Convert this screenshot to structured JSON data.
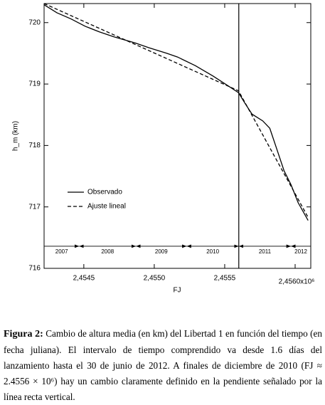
{
  "chart_data": {
    "type": "line",
    "ylabel": "h_m (km)",
    "xlabel": "FJ",
    "xlim": [
      2454218,
      2456111
    ],
    "ylim": [
      716,
      720.31
    ],
    "yticks": [
      716,
      717,
      718,
      719,
      720
    ],
    "xticks": [
      {
        "value": 2454500,
        "label": "2,4545"
      },
      {
        "value": 2455000,
        "label": "2,4550"
      },
      {
        "value": 2455500,
        "label": "2,4555"
      },
      {
        "value": 2456000,
        "label": "2,4560x10⁶"
      }
    ],
    "legend": "left",
    "vline_x": 2455600,
    "period_bar_y": 716.36,
    "periods": [
      {
        "label": "2007",
        "start": 2454218,
        "end": 2454467
      },
      {
        "label": "2008",
        "start": 2454467,
        "end": 2454870
      },
      {
        "label": "2009",
        "start": 2454870,
        "end": 2455230
      },
      {
        "label": "2010",
        "start": 2455230,
        "end": 2455600
      },
      {
        "label": "2011",
        "start": 2455600,
        "end": 2455970
      },
      {
        "label": "2012",
        "start": 2455970,
        "end": 2456111
      }
    ],
    "series": [
      {
        "name": "Observado",
        "color": "#000000",
        "dash": false,
        "x": [
          2454218,
          2454309,
          2454409,
          2454510,
          2454610,
          2454712,
          2454863,
          2454963,
          2455089,
          2455165,
          2455291,
          2455417,
          2455518,
          2455598,
          2455643,
          2455694,
          2455770,
          2455820,
          2455870,
          2455921,
          2455971,
          2456021,
          2456092
        ],
        "values": [
          720.29,
          720.16,
          720.06,
          719.94,
          719.85,
          719.77,
          719.67,
          719.59,
          719.5,
          719.44,
          719.3,
          719.13,
          718.98,
          718.86,
          718.69,
          718.51,
          718.4,
          718.28,
          717.94,
          717.59,
          717.36,
          717.07,
          716.78
        ]
      },
      {
        "name": "Ajuste lineal",
        "color": "#000000",
        "dash": true,
        "x": [
          2454218,
          2455598,
          2456092
        ],
        "values": [
          720.31,
          718.89,
          716.83
        ]
      }
    ]
  },
  "caption": {
    "label": "Figura 2:",
    "text": "Cambio de altura media (en km) del Libertad 1 en función del tiempo (en fecha juliana). El intervalo de tiempo comprendido va desde 1.6 días del lanzamiento hasta el 30 de junio de 2012. A finales de diciembre de 2010 (FJ ≈ 2.4556 × 10⁶) hay un cambio claramente definido en la pendiente señalado por la línea recta vertical."
  }
}
